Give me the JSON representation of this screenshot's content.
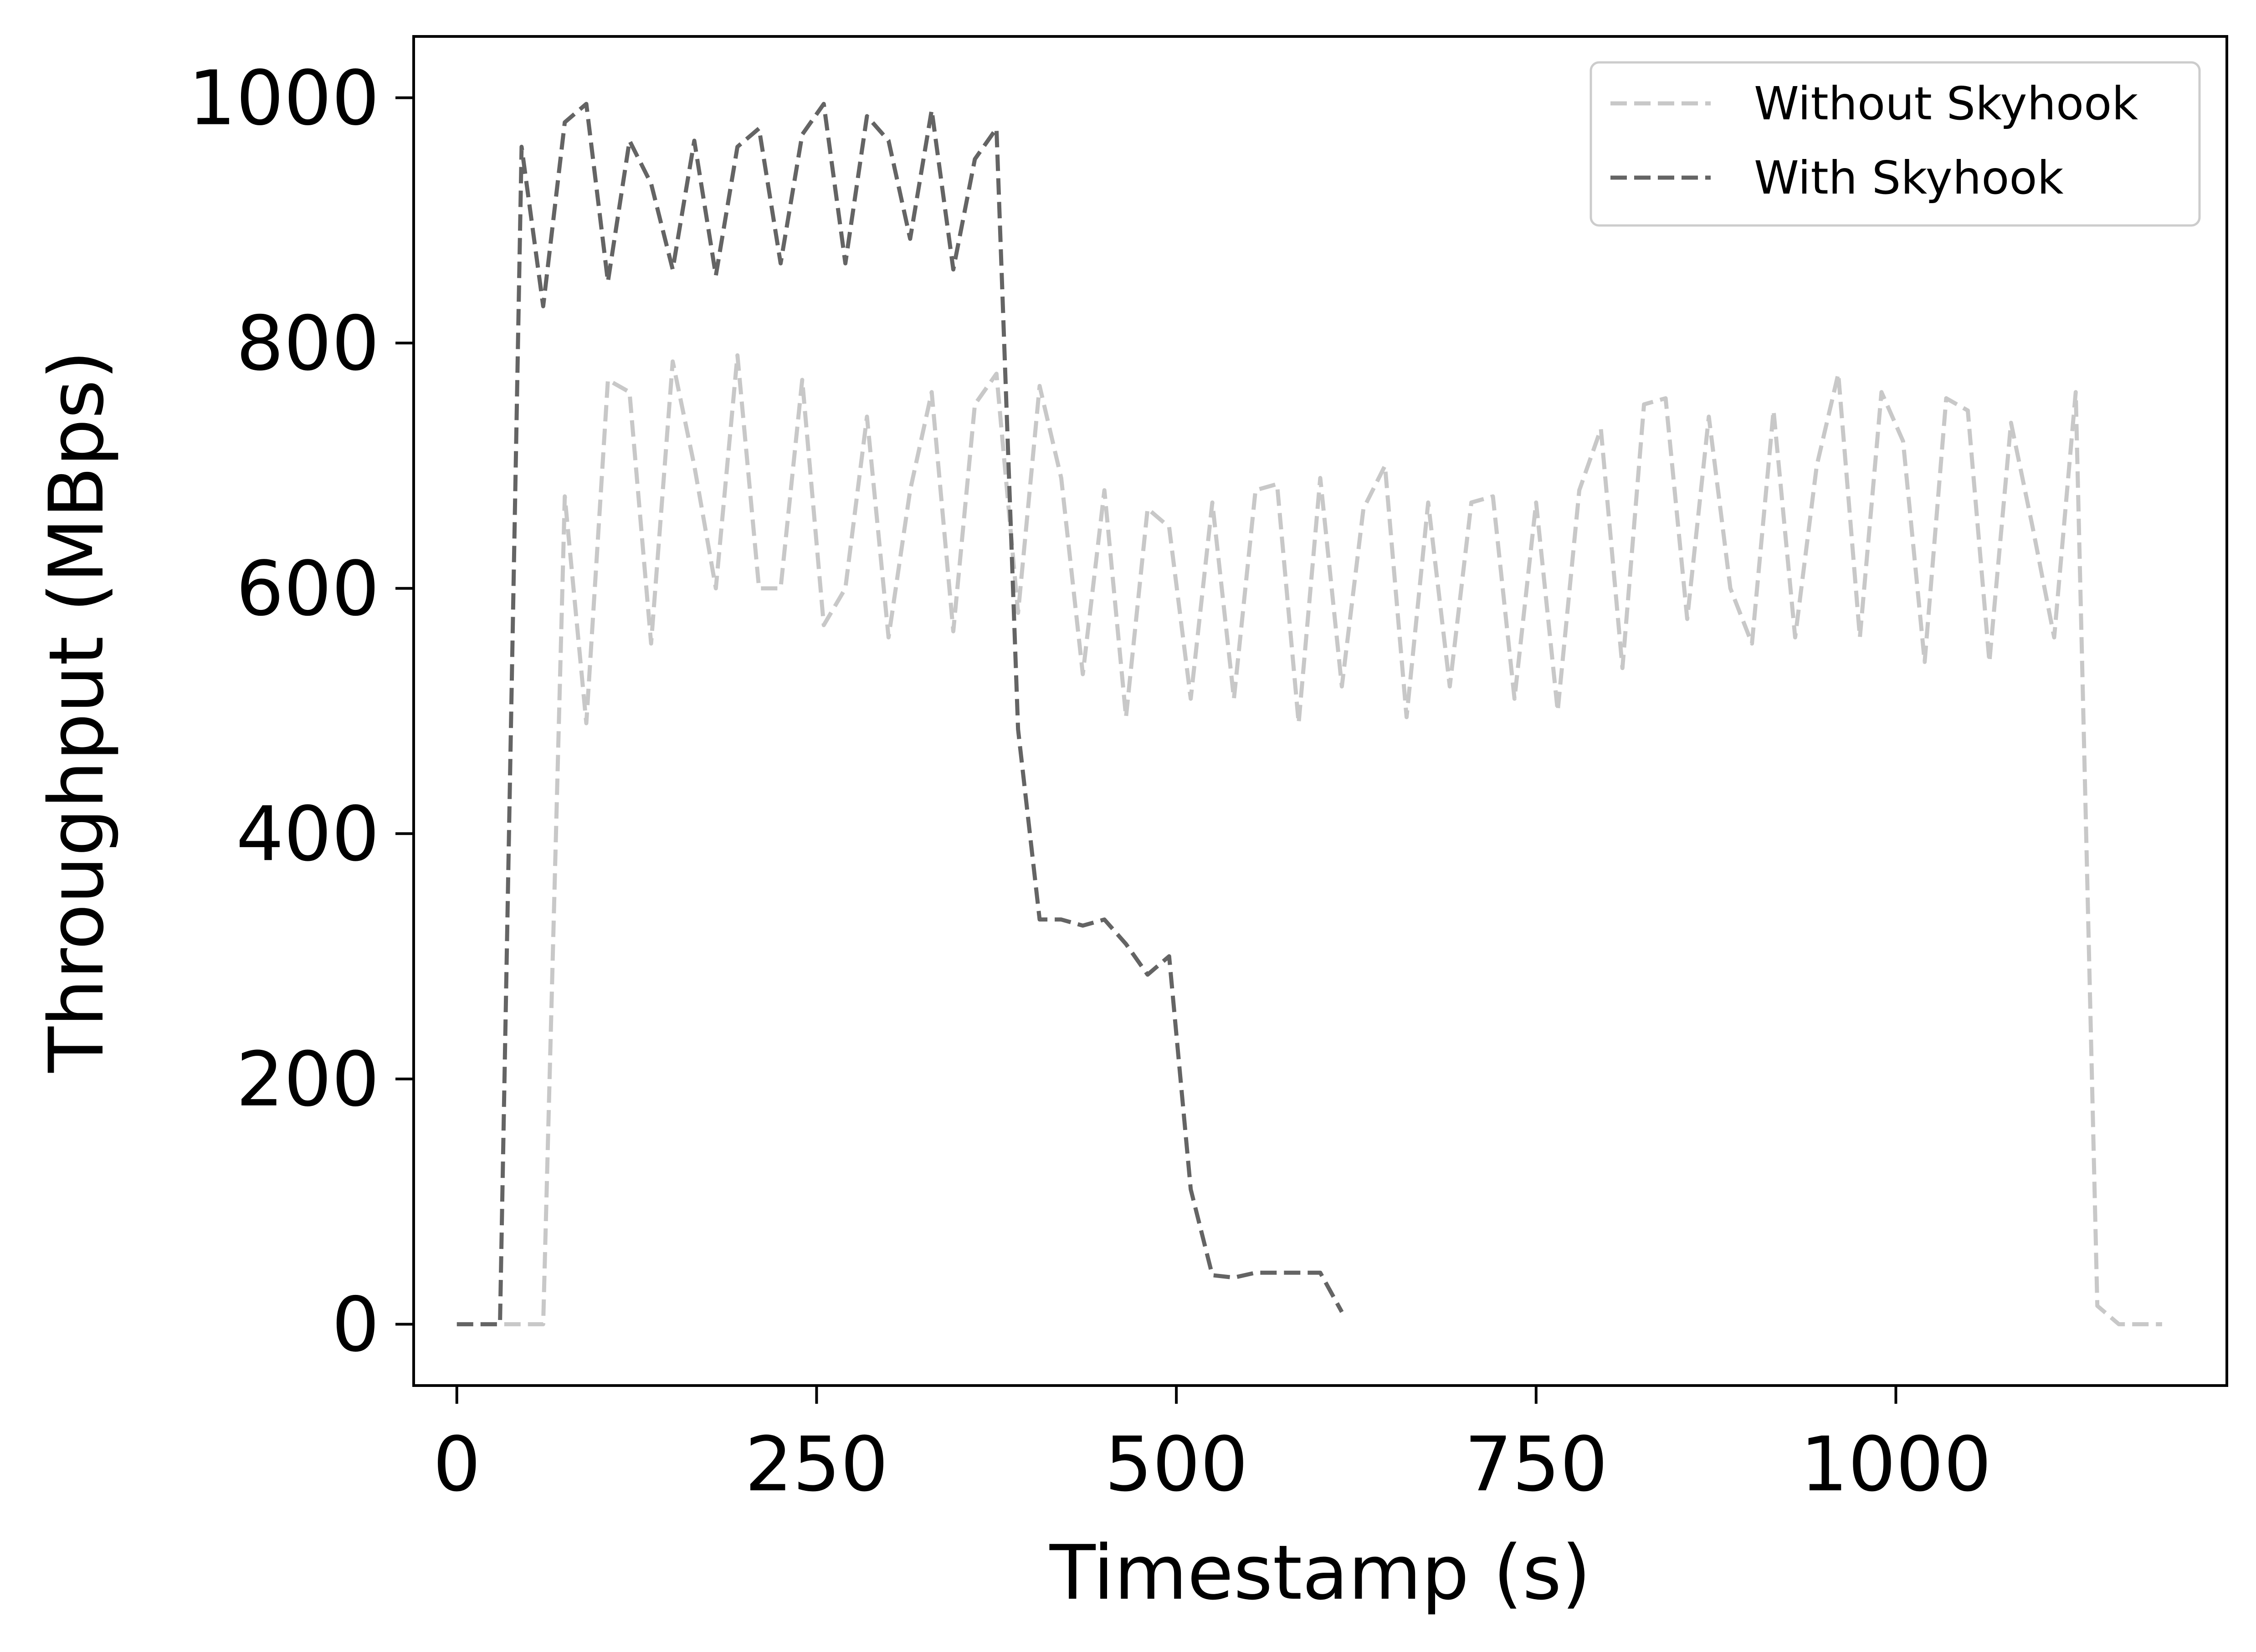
{
  "chart_data": {
    "type": "line",
    "title": "",
    "xlabel": "Timestamp (s)",
    "ylabel": "Throughput (MBps)",
    "xlim": [
      -30,
      1230
    ],
    "ylim": [
      -50,
      1050
    ],
    "xticks": [
      0,
      250,
      500,
      750,
      1000
    ],
    "xtick_labels": [
      "0",
      "250",
      "500",
      "750",
      "1000"
    ],
    "yticks": [
      0,
      200,
      400,
      600,
      800,
      1000
    ],
    "ytick_labels": [
      "0",
      "200",
      "400",
      "600",
      "800",
      "1000"
    ],
    "grid": false,
    "legend_position": "top-right",
    "series": [
      {
        "name": "Without Skyhook",
        "color": "#c8c8c8",
        "style": "dashed",
        "x": [
          0,
          30,
          60,
          75,
          90,
          105,
          120,
          135,
          150,
          165,
          180,
          195,
          210,
          225,
          240,
          255,
          270,
          285,
          300,
          315,
          330,
          345,
          360,
          375,
          390,
          405,
          420,
          435,
          450,
          465,
          480,
          495,
          510,
          525,
          540,
          555,
          570,
          585,
          600,
          615,
          630,
          645,
          660,
          675,
          690,
          705,
          720,
          735,
          750,
          765,
          780,
          795,
          810,
          825,
          840,
          855,
          870,
          885,
          900,
          915,
          930,
          945,
          960,
          975,
          990,
          1005,
          1020,
          1035,
          1050,
          1065,
          1080,
          1095,
          1110,
          1125,
          1140,
          1155,
          1170,
          1185
        ],
        "y": [
          0,
          0,
          0,
          675,
          490,
          770,
          760,
          555,
          785,
          700,
          600,
          790,
          600,
          600,
          770,
          570,
          600,
          740,
          560,
          680,
          760,
          565,
          750,
          775,
          580,
          765,
          690,
          530,
          680,
          495,
          665,
          650,
          510,
          670,
          510,
          680,
          685,
          490,
          690,
          520,
          665,
          700,
          495,
          670,
          520,
          670,
          675,
          510,
          670,
          500,
          680,
          730,
          535,
          750,
          755,
          575,
          740,
          600,
          555,
          745,
          560,
          700,
          775,
          560,
          760,
          720,
          540,
          755,
          745,
          540,
          735,
          650,
          560,
          760,
          15,
          0,
          0,
          0
        ]
      },
      {
        "name": "With Skyhook",
        "color": "#646464",
        "style": "dashed",
        "x": [
          0,
          10,
          30,
          45,
          60,
          75,
          90,
          105,
          120,
          135,
          150,
          165,
          180,
          195,
          210,
          225,
          240,
          255,
          270,
          285,
          300,
          315,
          330,
          345,
          360,
          375,
          390,
          405,
          420,
          435,
          450,
          465,
          480,
          495,
          510,
          525,
          540,
          555,
          570,
          585,
          600,
          615
        ],
        "y": [
          0,
          0,
          0,
          960,
          830,
          980,
          995,
          850,
          965,
          930,
          860,
          965,
          855,
          960,
          975,
          865,
          970,
          995,
          865,
          985,
          965,
          885,
          990,
          860,
          950,
          975,
          485,
          330,
          330,
          325,
          330,
          310,
          285,
          300,
          110,
          40,
          38,
          42,
          42,
          42,
          42,
          10
        ]
      }
    ]
  }
}
